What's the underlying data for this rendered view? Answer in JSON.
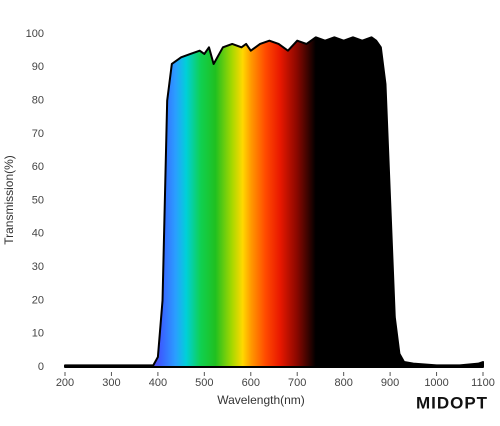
{
  "chart_data": {
    "type": "area",
    "x_label": "Wavelength(nm)",
    "y_label": "Transmission(%)",
    "x": [
      200,
      300,
      390,
      400,
      410,
      420,
      430,
      450,
      470,
      490,
      500,
      510,
      520,
      540,
      560,
      580,
      590,
      600,
      620,
      640,
      660,
      680,
      700,
      720,
      740,
      760,
      780,
      800,
      820,
      840,
      860,
      870,
      880,
      890,
      900,
      910,
      920,
      930,
      950,
      1000,
      1050,
      1090,
      1100
    ],
    "values": [
      0.5,
      0.5,
      0.5,
      3,
      20,
      80,
      91,
      93,
      94,
      95,
      94,
      96,
      91,
      96,
      97,
      96,
      97,
      95,
      97,
      98,
      97,
      95,
      98,
      97,
      99,
      98,
      99,
      98,
      99,
      98,
      99,
      98,
      96,
      85,
      50,
      15,
      4,
      1.5,
      1,
      0.5,
      0.5,
      1,
      1.5
    ],
    "color": "#000000",
    "xlim": [
      200,
      1100
    ],
    "xticks": [
      200,
      300,
      400,
      500,
      600,
      700,
      800,
      900,
      1000,
      1100
    ],
    "ylim": [
      0,
      100
    ],
    "yticks": [
      0,
      10,
      20,
      30,
      40,
      50,
      60,
      70,
      80,
      90,
      100
    ],
    "grid": false
  },
  "logo": "MIDOPT"
}
